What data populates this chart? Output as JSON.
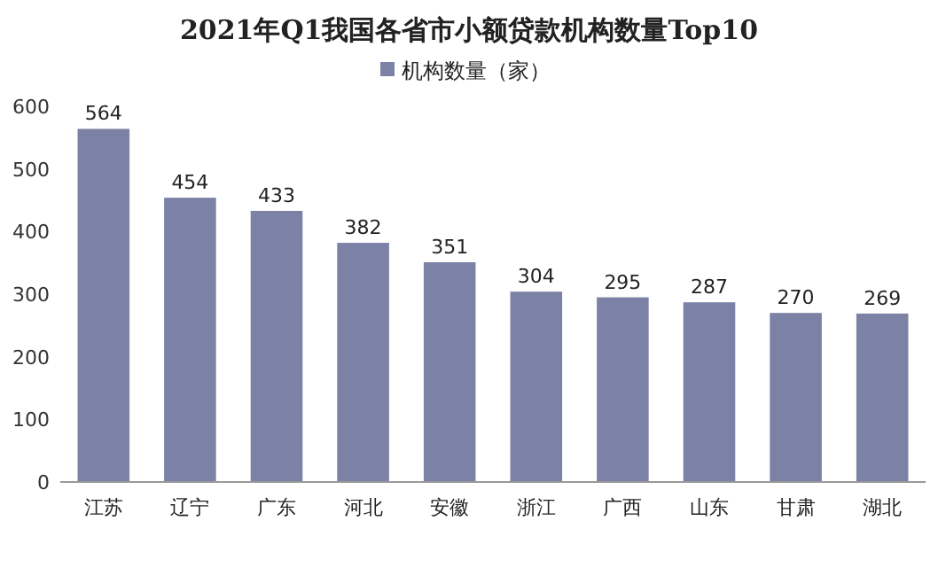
{
  "chart_data": {
    "type": "bar",
    "title": "2021年Q1我国各省市小额贷款机构数量Top10",
    "categories": [
      "江苏",
      "辽宁",
      "广东",
      "河北",
      "安徽",
      "浙江",
      "广西",
      "山东",
      "甘肃",
      "湖北"
    ],
    "series": [
      {
        "name": "机构数量（家）",
        "color": "#7c81a6",
        "values": [
          564,
          454,
          433,
          382,
          351,
          304,
          295,
          287,
          270,
          269
        ]
      }
    ],
    "ylim": [
      0,
      600
    ],
    "yticks": [
      0,
      100,
      200,
      300,
      400,
      500,
      600
    ],
    "data_labels": true,
    "legend": "top"
  }
}
